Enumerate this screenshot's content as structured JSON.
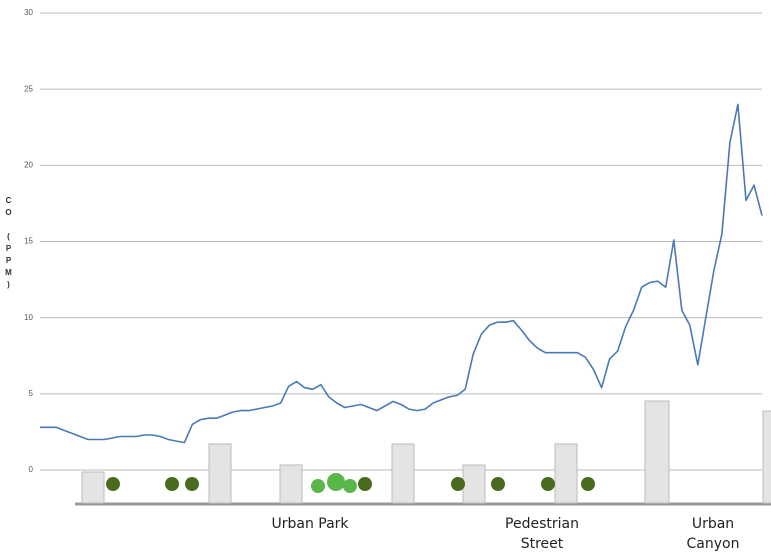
{
  "chart_data": {
    "type": "line",
    "y_label": "CO (PPM)",
    "annotations": [
      "Urban Park",
      "Pedestrian Street",
      "Urban Canyon"
    ],
    "color": "#4a7ab5",
    "grid": true,
    "ylim": [
      0,
      30
    ],
    "yticks": [
      0,
      5,
      10,
      15,
      20,
      25,
      30
    ],
    "values": [
      2.8,
      2.8,
      2.8,
      2.6,
      2.4,
      2.2,
      2.0,
      2.0,
      2.0,
      2.1,
      2.2,
      2.2,
      2.2,
      2.3,
      2.3,
      2.2,
      2.0,
      1.9,
      1.8,
      3.0,
      3.3,
      3.4,
      3.4,
      3.6,
      3.8,
      3.9,
      3.9,
      4.0,
      4.1,
      4.2,
      4.4,
      5.5,
      5.8,
      5.4,
      5.3,
      5.6,
      4.8,
      4.4,
      4.1,
      4.2,
      4.3,
      4.1,
      3.9,
      4.2,
      4.5,
      4.3,
      4.0,
      3.9,
      4.0,
      4.4,
      4.6,
      4.8,
      4.9,
      5.3,
      7.6,
      8.9,
      9.5,
      9.7,
      9.7,
      9.8,
      9.2,
      8.5,
      8.0,
      7.7,
      7.7,
      7.7,
      7.7,
      7.7,
      7.4,
      6.6,
      5.4,
      7.3,
      7.8,
      9.4,
      10.5,
      12.0,
      12.3,
      12.4,
      12.0,
      15.1,
      10.5,
      9.5,
      6.9,
      10.0,
      13.1,
      15.5,
      21.5,
      24.0,
      17.7,
      18.7,
      16.7
    ]
  }
}
